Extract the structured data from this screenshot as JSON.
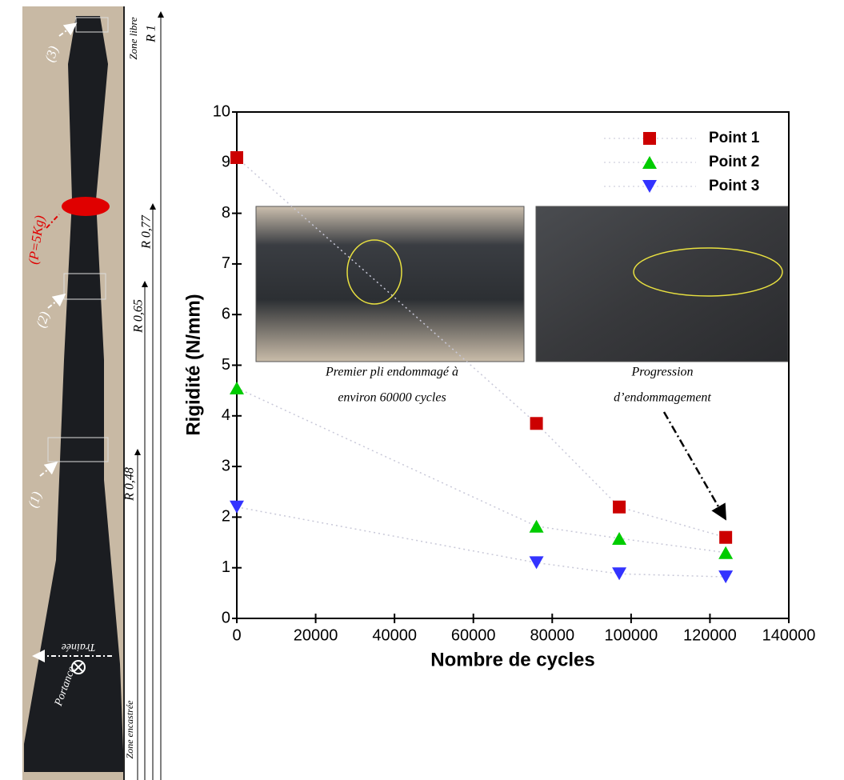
{
  "chart_data": {
    "type": "scatter",
    "xlabel": "Nombre de cycles",
    "ylabel": "Rigidité (N/mm)",
    "x": [
      0,
      76000,
      97000,
      124000
    ],
    "series": [
      {
        "name": "Point 1",
        "color": "#cc0000",
        "marker": "square",
        "values": [
          9.1,
          3.85,
          2.2,
          1.6
        ]
      },
      {
        "name": "Point 2",
        "color": "#00cc00",
        "marker": "triangle-up",
        "values": [
          4.55,
          1.82,
          1.58,
          1.3
        ]
      },
      {
        "name": "Point 3",
        "color": "#3333ff",
        "marker": "triangle-down",
        "values": [
          2.2,
          1.1,
          0.88,
          0.82
        ]
      }
    ],
    "xlim": [
      0,
      140000
    ],
    "xticks": [
      0,
      20000,
      40000,
      60000,
      80000,
      100000,
      120000,
      140000
    ],
    "ylim": [
      0,
      10
    ],
    "yticks": [
      0,
      1,
      2,
      3,
      4,
      5,
      6,
      7,
      8,
      9,
      10
    ],
    "legend": "upper right",
    "annotations": [
      {
        "lines": [
          "Premier pli endommagé à",
          "environ 60000 cycles"
        ]
      },
      {
        "lines": [
          "Progression",
          "d’endommagement"
        ]
      }
    ]
  },
  "blade_photo": {
    "labels": [
      "(3)",
      "(P=5Kg)",
      "(2)",
      "(1)",
      "Zone libre",
      "R 1",
      "R 0,77",
      "R 0,65",
      "R 0,48",
      "Zone encastrée",
      "Trainée",
      "Portance"
    ]
  }
}
